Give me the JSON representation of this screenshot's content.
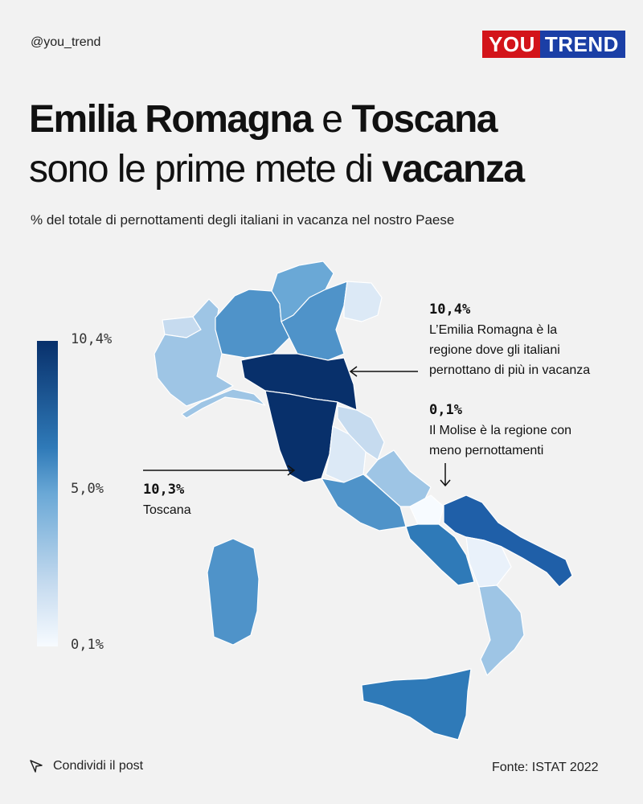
{
  "handle": "@you_trend",
  "logo": {
    "part1": "YOU",
    "part2": "TREND"
  },
  "title": {
    "line1_bold_a": "Emilia Romagna",
    "line1_light": " e ",
    "line1_bold_b": "Toscana",
    "line2_light": "sono le prime mete di ",
    "line2_bold": "vacanza"
  },
  "subtitle": "% del totale di pernottamenti degli italiani in vacanza nel nostro Paese",
  "legend": {
    "max": "10,4%",
    "mid": "5,0%",
    "min": "0,1%"
  },
  "annotations": {
    "emilia": {
      "value": "10,4%",
      "line1": "L’Emilia Romagna è la",
      "line2": "regione dove gli italiani",
      "line3": "pernottano di più in vacanza"
    },
    "molise": {
      "value": "0,1%",
      "line1": "Il Molise è la regione con",
      "line2": "meno pernottamenti"
    },
    "toscana": {
      "value": "10,3%",
      "line1": "Toscana"
    }
  },
  "footer": {
    "share": "Condividi il post",
    "source": "Fonte: ISTAT 2022"
  },
  "colors": {
    "darkest": "#08306b",
    "dark": "#1f5fa8",
    "mid": "#4f93c9",
    "light": "#9ec5e5",
    "lighter": "#c6dbef",
    "lightest": "#e9f1fa"
  }
}
